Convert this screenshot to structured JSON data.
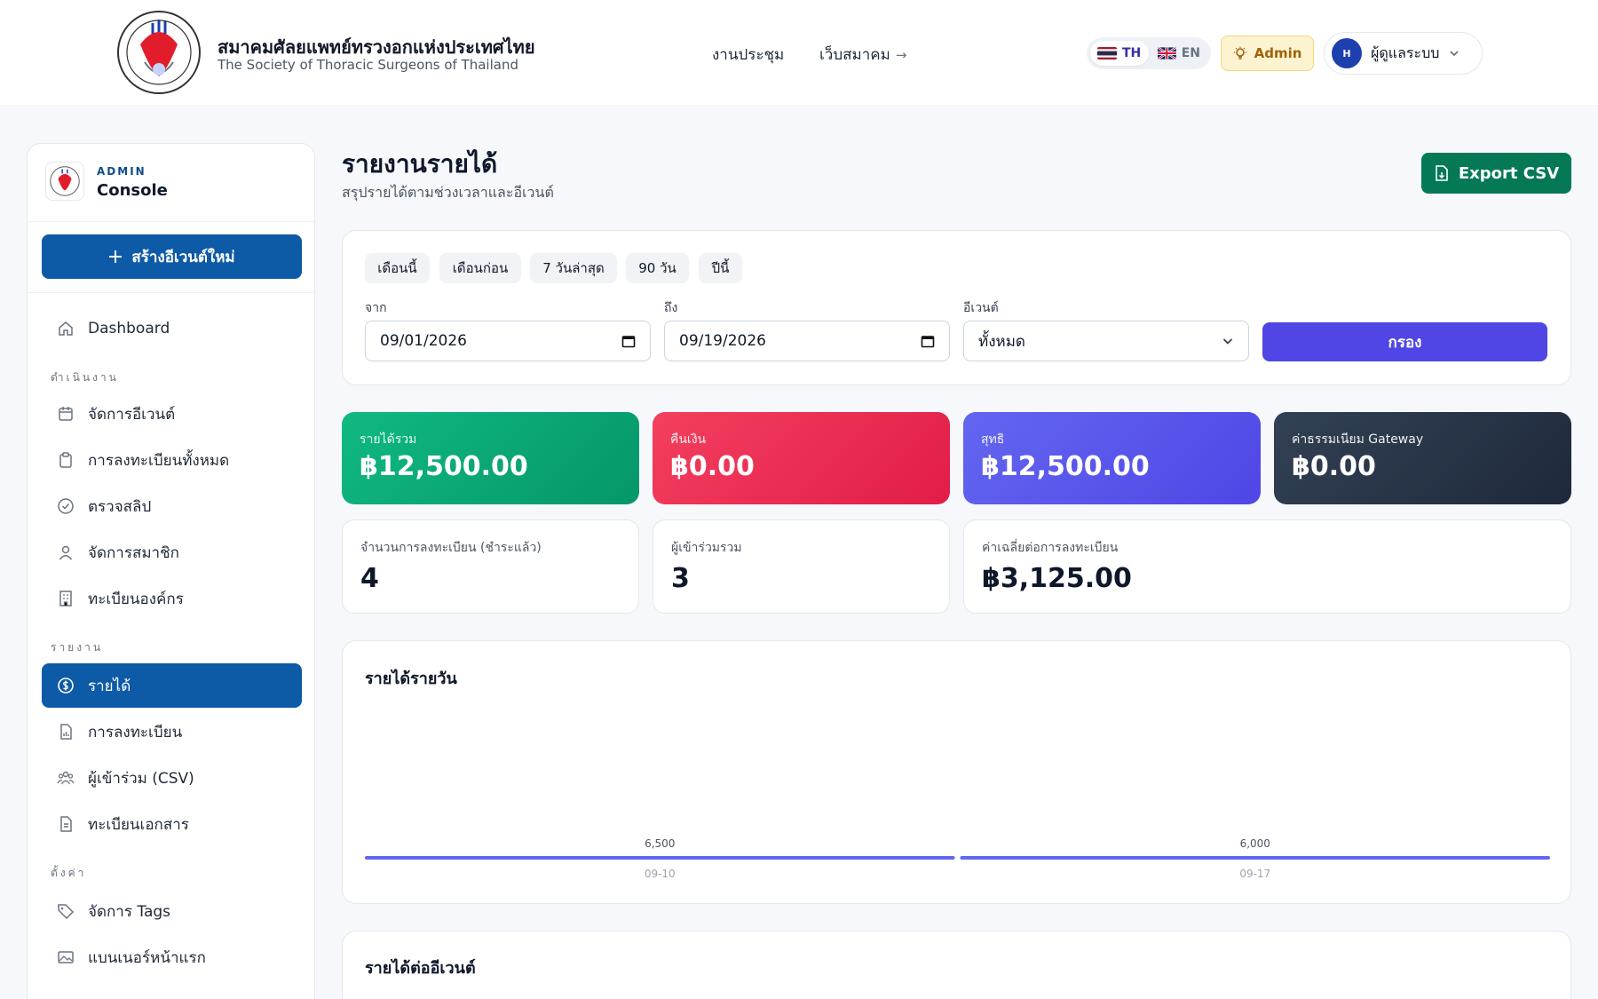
{
  "header": {
    "org_name_th": "สมาคมศัลยแพทย์ทรวงอกแห่งประเทศไทย",
    "org_name_en": "The Society of Thoracic Surgeons of Thailand",
    "nav": [
      {
        "label": "งานประชุม"
      },
      {
        "label": "เว็บสมาคม"
      }
    ],
    "lang": {
      "th": "TH",
      "en": "EN",
      "selected": "TH"
    },
    "role_badge": "Admin",
    "user": {
      "initial": "H",
      "name": "ผู้ดูแลระบบ"
    }
  },
  "sidebar": {
    "eyebrow": "ADMIN",
    "title": "Console",
    "create_button": "สร้างอีเวนต์ใหม่",
    "dashboard": "Dashboard",
    "sections": {
      "operations": "ดำเนินงาน",
      "reports": "รายงาน",
      "settings": "ตั้งค่า"
    },
    "items": {
      "manage_events": "จัดการอีเวนต์",
      "all_registrations": "การลงทะเบียนทั้งหมด",
      "verify_slips": "ตรวจสลิป",
      "manage_members": "จัดการสมาชิก",
      "org_registry": "ทะเบียนองค์กร",
      "revenue": "รายได้",
      "registrations": "การลงทะเบียน",
      "attendees_csv": "ผู้เข้าร่วม (CSV)",
      "documents": "ทะเบียนเอกสาร",
      "manage_tags": "จัดการ Tags",
      "home_banners": "แบนเนอร์หน้าแรก"
    }
  },
  "page": {
    "title": "รายงานรายได้",
    "subtitle": "สรุปรายได้ตามช่วงเวลาและอีเวนต์",
    "export_label": "Export CSV"
  },
  "filters": {
    "presets": [
      "เดือนนี้",
      "เดือนก่อน",
      "7 วันล่าสุด",
      "90 วัน",
      "ปีนี้"
    ],
    "from_label": "จาก",
    "from_value": "09/01/2026",
    "to_label": "ถึง",
    "to_value": "09/19/2026",
    "event_label": "อีเวนต์",
    "event_value": "ทั้งหมด",
    "submit_label": "กรอง"
  },
  "stats": {
    "gross": {
      "label": "รายได้รวม",
      "value": "฿12,500.00"
    },
    "refund": {
      "label": "คืนเงิน",
      "value": "฿0.00"
    },
    "net": {
      "label": "สุทธิ",
      "value": "฿12,500.00"
    },
    "gateway_fee": {
      "label": "ค่าธรรมเนียม Gateway",
      "value": "฿0.00"
    },
    "paid_registrations": {
      "label": "จำนวนการลงทะเบียน (ชำระแล้ว)",
      "value": "4"
    },
    "attendees": {
      "label": "ผู้เข้าร่วมรวม",
      "value": "3"
    },
    "avg_per_registration": {
      "label": "ค่าเฉลี่ยต่อการลงทะเบียน",
      "value": "฿3,125.00"
    }
  },
  "daily_chart_title": "รายได้รายวัน",
  "event_section_title": "รายได้ต่ออีเวนต์",
  "colors": {
    "primary": "#0d5aa7",
    "accent": "#4f46e5",
    "success": "#047857",
    "bar": "#6366f1"
  },
  "chart_data": {
    "type": "bar",
    "title": "รายได้รายวัน",
    "categories": [
      "09-10",
      "09-17"
    ],
    "values": [
      6500,
      6000
    ],
    "value_labels": [
      "6,500",
      "6,000"
    ],
    "xlabel": "",
    "ylabel": "",
    "grid": false,
    "legend": "none"
  }
}
